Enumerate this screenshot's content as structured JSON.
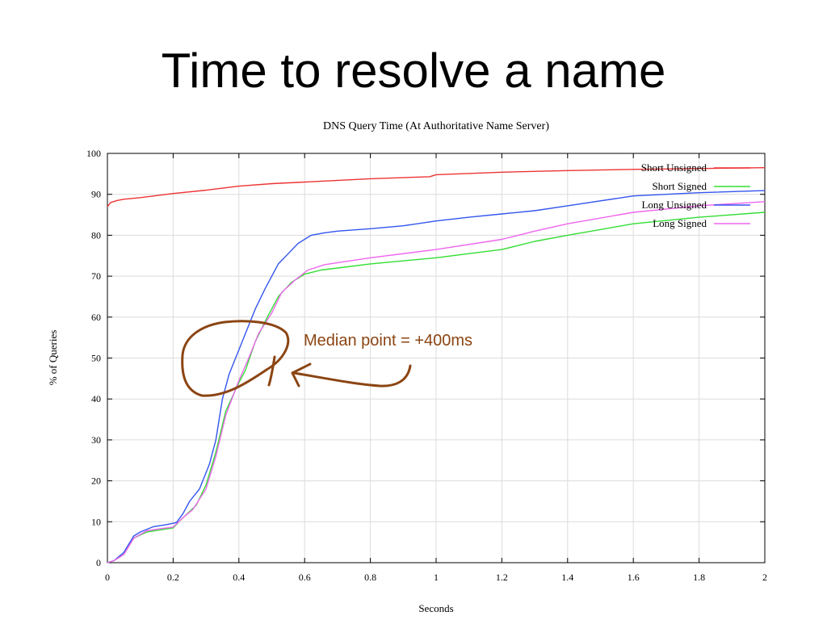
{
  "slide": {
    "title": "Time to resolve a name"
  },
  "annotation": {
    "text": "Median point = +400ms",
    "color": "#8B4513"
  },
  "chart_data": {
    "type": "line",
    "title": "DNS Query Time (At Authoritative Name Server)",
    "xlabel": "Seconds",
    "ylabel": "% of Queries",
    "xlim": [
      0,
      2
    ],
    "ylim": [
      0,
      100
    ],
    "x_ticks": [
      "0",
      "0.2",
      "0.4",
      "0.6",
      "0.8",
      "1",
      "1.2",
      "1.4",
      "1.6",
      "1.8",
      "2"
    ],
    "y_ticks": [
      "0",
      "10",
      "20",
      "30",
      "40",
      "50",
      "60",
      "70",
      "80",
      "90",
      "100"
    ],
    "grid": true,
    "legend_position": "top-right",
    "series": [
      {
        "name": "Short Unsigned",
        "color": "#ee3333",
        "points": [
          [
            0,
            87
          ],
          [
            0.01,
            88
          ],
          [
            0.03,
            88.5
          ],
          [
            0.05,
            88.8
          ],
          [
            0.1,
            89.2
          ],
          [
            0.2,
            90.2
          ],
          [
            0.3,
            91
          ],
          [
            0.4,
            92
          ],
          [
            0.5,
            92.6
          ],
          [
            0.6,
            93
          ],
          [
            0.8,
            93.8
          ],
          [
            0.98,
            94.3
          ],
          [
            1.0,
            94.8
          ],
          [
            1.2,
            95.4
          ],
          [
            1.4,
            95.8
          ],
          [
            1.6,
            96.1
          ],
          [
            1.8,
            96.3
          ],
          [
            2.0,
            96.5
          ]
        ]
      },
      {
        "name": "Short Signed",
        "color": "#33dd33",
        "points": [
          [
            0,
            0
          ],
          [
            0.02,
            0.5
          ],
          [
            0.05,
            2
          ],
          [
            0.08,
            6
          ],
          [
            0.12,
            7.5
          ],
          [
            0.16,
            8
          ],
          [
            0.2,
            8.5
          ],
          [
            0.23,
            11
          ],
          [
            0.27,
            14
          ],
          [
            0.3,
            19
          ],
          [
            0.33,
            27
          ],
          [
            0.36,
            37
          ],
          [
            0.4,
            44
          ],
          [
            0.42,
            47
          ],
          [
            0.45,
            54
          ],
          [
            0.48,
            59
          ],
          [
            0.52,
            65
          ],
          [
            0.56,
            68.5
          ],
          [
            0.6,
            70.5
          ],
          [
            0.65,
            71.5
          ],
          [
            0.7,
            72
          ],
          [
            0.8,
            73
          ],
          [
            1.0,
            74.5
          ],
          [
            1.2,
            76.5
          ],
          [
            1.3,
            78.5
          ],
          [
            1.4,
            80
          ],
          [
            1.6,
            82.8
          ],
          [
            1.8,
            84.4
          ],
          [
            2.0,
            85.6
          ]
        ]
      },
      {
        "name": "Long Unsigned",
        "color": "#3355ee",
        "points": [
          [
            0,
            0
          ],
          [
            0.02,
            0.5
          ],
          [
            0.05,
            2.5
          ],
          [
            0.08,
            6.5
          ],
          [
            0.1,
            7.5
          ],
          [
            0.14,
            8.8
          ],
          [
            0.18,
            9.3
          ],
          [
            0.21,
            9.8
          ],
          [
            0.23,
            12
          ],
          [
            0.25,
            15
          ],
          [
            0.28,
            18
          ],
          [
            0.31,
            24
          ],
          [
            0.33,
            30
          ],
          [
            0.35,
            40
          ],
          [
            0.37,
            46
          ],
          [
            0.4,
            52
          ],
          [
            0.42,
            56
          ],
          [
            0.45,
            62
          ],
          [
            0.48,
            67
          ],
          [
            0.52,
            73
          ],
          [
            0.55,
            75.5
          ],
          [
            0.58,
            78
          ],
          [
            0.62,
            80
          ],
          [
            0.66,
            80.6
          ],
          [
            0.7,
            81
          ],
          [
            0.8,
            81.6
          ],
          [
            0.9,
            82.3
          ],
          [
            1.0,
            83.5
          ],
          [
            1.1,
            84.4
          ],
          [
            1.2,
            85.2
          ],
          [
            1.3,
            86
          ],
          [
            1.4,
            87.2
          ],
          [
            1.6,
            89.6
          ],
          [
            1.8,
            90.4
          ],
          [
            2.0,
            90.9
          ]
        ]
      },
      {
        "name": "Long Signed",
        "color": "#ee66ee",
        "points": [
          [
            0,
            0
          ],
          [
            0.02,
            0.5
          ],
          [
            0.05,
            2
          ],
          [
            0.08,
            6
          ],
          [
            0.12,
            7.8
          ],
          [
            0.16,
            8.3
          ],
          [
            0.2,
            8.7
          ],
          [
            0.23,
            11
          ],
          [
            0.26,
            13
          ],
          [
            0.3,
            18
          ],
          [
            0.33,
            26
          ],
          [
            0.36,
            36
          ],
          [
            0.4,
            44.5
          ],
          [
            0.43,
            50
          ],
          [
            0.46,
            56
          ],
          [
            0.5,
            61
          ],
          [
            0.53,
            66
          ],
          [
            0.57,
            69
          ],
          [
            0.61,
            71.5
          ],
          [
            0.66,
            72.8
          ],
          [
            0.7,
            73.3
          ],
          [
            0.8,
            74.5
          ],
          [
            1.0,
            76.5
          ],
          [
            1.2,
            79
          ],
          [
            1.3,
            81
          ],
          [
            1.4,
            82.8
          ],
          [
            1.6,
            85.6
          ],
          [
            1.8,
            87.2
          ],
          [
            2.0,
            88.2
          ]
        ]
      }
    ]
  }
}
